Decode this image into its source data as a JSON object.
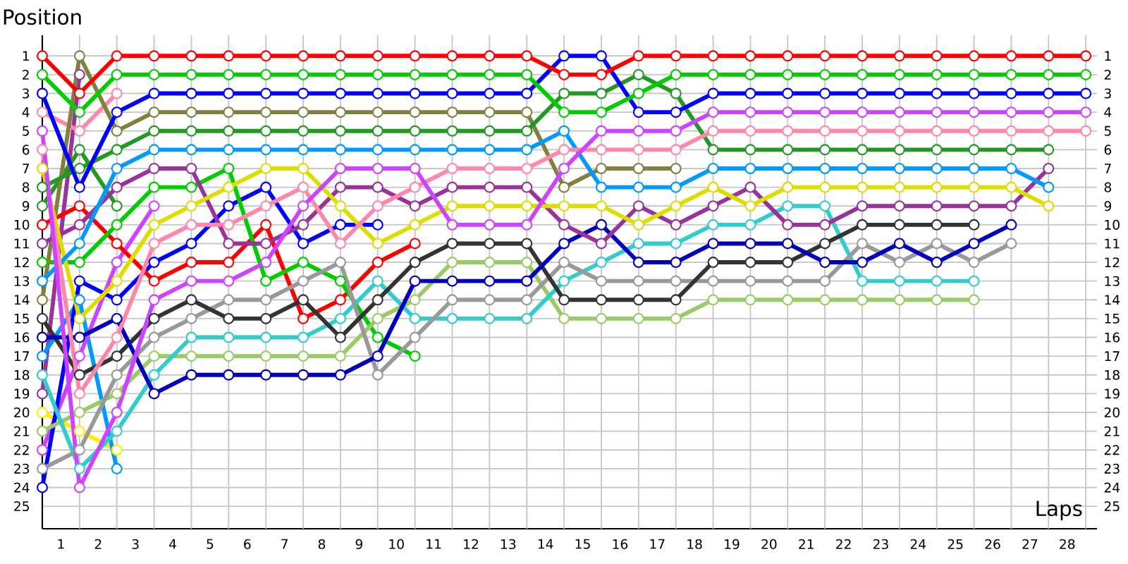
{
  "chart_data": {
    "type": "line",
    "xlabel": "Laps",
    "ylabel": "Position",
    "x": [
      0,
      1,
      2,
      3,
      4,
      5,
      6,
      7,
      8,
      9,
      10,
      11,
      12,
      13,
      14,
      15,
      16,
      17,
      18,
      19,
      20,
      21,
      22,
      23,
      24,
      25,
      26,
      27,
      28
    ],
    "xlim": [
      0,
      28.3
    ],
    "ylim": [
      26.2,
      -0.1
    ],
    "y2lim": [
      26.2,
      -0.1
    ],
    "xticks": [
      {
        "value": 0.5,
        "label": "1"
      },
      {
        "value": 1.5,
        "label": "2"
      },
      {
        "value": 2.5,
        "label": "3"
      },
      {
        "value": 3.5,
        "label": "4"
      },
      {
        "value": 4.5,
        "label": "5"
      },
      {
        "value": 5.5,
        "label": "6"
      },
      {
        "value": 6.5,
        "label": "7"
      },
      {
        "value": 7.5,
        "label": "8"
      },
      {
        "value": 8.5,
        "label": "9"
      },
      {
        "value": 9.5,
        "label": "10"
      },
      {
        "value": 10.5,
        "label": "11"
      },
      {
        "value": 11.5,
        "label": "12"
      },
      {
        "value": 12.5,
        "label": "13"
      },
      {
        "value": 13.5,
        "label": "14"
      },
      {
        "value": 14.5,
        "label": "15"
      },
      {
        "value": 15.5,
        "label": "16"
      },
      {
        "value": 16.5,
        "label": "17"
      },
      {
        "value": 17.5,
        "label": "18"
      },
      {
        "value": 18.5,
        "label": "19"
      },
      {
        "value": 19.5,
        "label": "20"
      },
      {
        "value": 20.5,
        "label": "21"
      },
      {
        "value": 21.5,
        "label": "22"
      },
      {
        "value": 22.5,
        "label": "23"
      },
      {
        "value": 23.5,
        "label": "24"
      },
      {
        "value": 24.5,
        "label": "25"
      },
      {
        "value": 25.5,
        "label": "26"
      },
      {
        "value": 26.5,
        "label": "27"
      },
      {
        "value": 27.5,
        "label": "28"
      },
      {
        "value": 1,
        "label": null
      },
      {
        "value": 2,
        "label": null
      },
      {
        "value": 3,
        "label": null
      },
      {
        "value": 4,
        "label": null
      },
      {
        "value": 5,
        "label": null
      },
      {
        "value": 6,
        "label": null
      },
      {
        "value": 7,
        "label": null
      },
      {
        "value": 8,
        "label": null
      },
      {
        "value": 9,
        "label": null
      },
      {
        "value": 10,
        "label": null
      },
      {
        "value": 11,
        "label": null
      },
      {
        "value": 12,
        "label": null
      },
      {
        "value": 13,
        "label": null
      },
      {
        "value": 14,
        "label": null
      },
      {
        "value": 15,
        "label": null
      },
      {
        "value": 16,
        "label": null
      },
      {
        "value": 17,
        "label": null
      },
      {
        "value": 18,
        "label": null
      },
      {
        "value": 19,
        "label": null
      },
      {
        "value": 20,
        "label": null
      },
      {
        "value": 21,
        "label": null
      },
      {
        "value": 22,
        "label": null
      },
      {
        "value": 23,
        "label": null
      },
      {
        "value": 24,
        "label": null
      },
      {
        "value": 25,
        "label": null
      },
      {
        "value": 26,
        "label": null
      },
      {
        "value": 27,
        "label": null
      },
      {
        "value": 28,
        "label": null
      }
    ],
    "yticks": [
      1,
      2,
      3,
      4,
      5,
      6,
      7,
      8,
      9,
      10,
      11,
      12,
      13,
      14,
      15,
      16,
      17,
      18,
      19,
      20,
      21,
      22,
      23,
      24,
      25
    ],
    "y2ticks": [
      1,
      2,
      3,
      4,
      5,
      6,
      7,
      8,
      9,
      10,
      11,
      12,
      13,
      14,
      15,
      16,
      17,
      18,
      19,
      20,
      21,
      22,
      23,
      24,
      25
    ],
    "grid": true,
    "marker": "circle",
    "line_style": "solid",
    "series": [
      {
        "color": "#ffee00",
        "values": [
          20,
          21,
          22,
          null,
          null,
          null,
          null,
          null,
          null,
          null,
          null,
          null,
          null,
          null,
          null,
          null,
          null,
          null,
          null,
          null,
          null,
          null,
          null,
          null,
          null,
          null,
          null,
          null,
          null
        ]
      },
      {
        "color": "#993399",
        "values": [
          19,
          2,
          null,
          null,
          null,
          null,
          null,
          null,
          null,
          null,
          null,
          null,
          null,
          null,
          null,
          null,
          null,
          null,
          null,
          null,
          null,
          null,
          null,
          null,
          null,
          null,
          null,
          null,
          null
        ]
      },
      {
        "color": "#ff88aa",
        "values": [
          4,
          5,
          3,
          null,
          null,
          null,
          null,
          null,
          null,
          null,
          null,
          null,
          null,
          null,
          null,
          null,
          null,
          null,
          null,
          null,
          null,
          null,
          null,
          null,
          null,
          null,
          null,
          null,
          null
        ]
      },
      {
        "color": "#0099ff",
        "values": [
          17,
          14,
          23,
          null,
          null,
          null,
          null,
          null,
          null,
          null,
          null,
          null,
          null,
          null,
          null,
          null,
          null,
          null,
          null,
          null,
          null,
          null,
          null,
          null,
          null,
          null,
          null,
          null,
          null
        ]
      },
      {
        "color": "#229922",
        "values": [
          9,
          6,
          9,
          null,
          null,
          null,
          null,
          null,
          null,
          null,
          null,
          null,
          null,
          null,
          null,
          null,
          null,
          null,
          null,
          null,
          null,
          null,
          null,
          null,
          null,
          null,
          null,
          null,
          null
        ]
      },
      {
        "color": "#cc44ff",
        "values": [
          22,
          17,
          12,
          9,
          null,
          null,
          null,
          null,
          null,
          null,
          null,
          null,
          null,
          null,
          null,
          null,
          null,
          null,
          null,
          null,
          null,
          null,
          null,
          null,
          null,
          null,
          null,
          null,
          null
        ]
      },
      {
        "color": "#0000ff",
        "values": [
          24,
          13,
          14,
          12,
          11,
          9,
          8,
          11,
          10,
          10,
          null,
          null,
          null,
          null,
          null,
          null,
          null,
          null,
          null,
          null,
          null,
          null,
          null,
          null,
          null,
          null,
          null,
          null,
          null
        ]
      },
      {
        "color": "#ff0000",
        "values": [
          10,
          9,
          11,
          13,
          12,
          12,
          10,
          15,
          14,
          12,
          11,
          null,
          null,
          null,
          null,
          null,
          null,
          null,
          null,
          null,
          null,
          null,
          null,
          null,
          null,
          null,
          null,
          null,
          null
        ]
      },
      {
        "color": "#00cc00",
        "values": [
          12,
          12,
          10,
          8,
          8,
          7,
          13,
          12,
          13,
          16,
          17,
          null,
          null,
          null,
          null,
          null,
          null,
          null,
          null,
          null,
          null,
          null,
          null,
          null,
          null,
          null,
          null,
          null,
          null
        ]
      },
      {
        "color": "#99cc66",
        "values": [
          21,
          20,
          19,
          17,
          17,
          17,
          17,
          17,
          17,
          15,
          14,
          12,
          12,
          12,
          15,
          15,
          15,
          15,
          14,
          14,
          14,
          14,
          14,
          14,
          14,
          14,
          null,
          null,
          null
        ]
      },
      {
        "color": "#33cccc",
        "values": [
          18,
          23,
          21,
          18,
          16,
          16,
          16,
          16,
          15,
          13,
          15,
          15,
          15,
          15,
          13,
          12,
          11,
          11,
          10,
          10,
          9,
          9,
          13,
          13,
          13,
          13,
          null,
          null,
          null
        ]
      },
      {
        "color": "#999999",
        "values": [
          23,
          22,
          18,
          16,
          15,
          14,
          14,
          13,
          12,
          18,
          16,
          14,
          14,
          14,
          12,
          13,
          13,
          13,
          13,
          13,
          13,
          13,
          11,
          12,
          11,
          12,
          11,
          null,
          null
        ]
      },
      {
        "color": "#333333",
        "values": [
          15,
          18,
          17,
          15,
          14,
          15,
          15,
          14,
          16,
          14,
          12,
          11,
          11,
          11,
          14,
          14,
          14,
          14,
          12,
          12,
          12,
          11,
          10,
          10,
          10,
          10,
          null,
          null,
          null
        ]
      },
      {
        "color": "#0000bb",
        "values": [
          16,
          16,
          15,
          19,
          18,
          18,
          18,
          18,
          18,
          17,
          13,
          13,
          13,
          13,
          11,
          10,
          12,
          12,
          11,
          11,
          11,
          12,
          12,
          11,
          12,
          11,
          10,
          null,
          null
        ]
      },
      {
        "color": "#808040",
        "values": [
          14,
          1,
          5,
          4,
          4,
          4,
          4,
          4,
          4,
          4,
          4,
          4,
          4,
          4,
          8,
          7,
          7,
          7,
          null,
          null,
          null,
          null,
          null,
          null,
          null,
          null,
          null,
          null,
          null
        ]
      },
      {
        "color": "#993399",
        "values": [
          11,
          10,
          8,
          7,
          7,
          11,
          11,
          10,
          8,
          8,
          9,
          8,
          8,
          8,
          10,
          11,
          9,
          10,
          9,
          8,
          10,
          10,
          9,
          9,
          9,
          9,
          9,
          7,
          null
        ]
      },
      {
        "color": "#dddd00",
        "values": [
          7,
          15,
          13,
          10,
          9,
          8,
          7,
          7,
          9,
          11,
          10,
          9,
          9,
          9,
          9,
          9,
          10,
          9,
          8,
          9,
          8,
          8,
          8,
          8,
          8,
          8,
          8,
          9,
          null
        ]
      },
      {
        "color": "#0099ff",
        "values": [
          13,
          11,
          7,
          6,
          6,
          6,
          6,
          6,
          6,
          6,
          6,
          6,
          6,
          6,
          5,
          8,
          8,
          8,
          7,
          7,
          7,
          7,
          7,
          7,
          7,
          7,
          7,
          8,
          null
        ]
      },
      {
        "color": "#229922",
        "values": [
          8,
          7,
          6,
          5,
          5,
          5,
          5,
          5,
          5,
          5,
          5,
          5,
          5,
          5,
          3,
          3,
          2,
          3,
          6,
          6,
          6,
          6,
          6,
          6,
          6,
          6,
          6,
          6,
          null
        ]
      },
      {
        "color": "#ff88aa",
        "values": [
          6,
          19,
          16,
          11,
          10,
          10,
          9,
          8,
          11,
          9,
          8,
          7,
          7,
          7,
          6,
          6,
          6,
          6,
          5,
          5,
          5,
          5,
          5,
          5,
          5,
          5,
          5,
          5,
          5
        ]
      },
      {
        "color": "#cc44ff",
        "values": [
          5,
          24,
          20,
          14,
          13,
          13,
          12,
          9,
          7,
          7,
          7,
          10,
          10,
          10,
          7,
          5,
          5,
          5,
          4,
          4,
          4,
          4,
          4,
          4,
          4,
          4,
          4,
          4,
          4
        ]
      },
      {
        "color": "#0000ff",
        "values": [
          3,
          8,
          4,
          3,
          3,
          3,
          3,
          3,
          3,
          3,
          3,
          3,
          3,
          3,
          1,
          1,
          4,
          4,
          3,
          3,
          3,
          3,
          3,
          3,
          3,
          3,
          3,
          3,
          3
        ]
      },
      {
        "color": "#00cc00",
        "values": [
          2,
          4,
          2,
          2,
          2,
          2,
          2,
          2,
          2,
          2,
          2,
          2,
          2,
          2,
          4,
          4,
          3,
          2,
          2,
          2,
          2,
          2,
          2,
          2,
          2,
          2,
          2,
          2,
          2
        ]
      },
      {
        "color": "#ff0000",
        "values": [
          1,
          3,
          1,
          1,
          1,
          1,
          1,
          1,
          1,
          1,
          1,
          1,
          1,
          1,
          2,
          2,
          1,
          1,
          1,
          1,
          1,
          1,
          1,
          1,
          1,
          1,
          1,
          1,
          1
        ]
      }
    ]
  }
}
